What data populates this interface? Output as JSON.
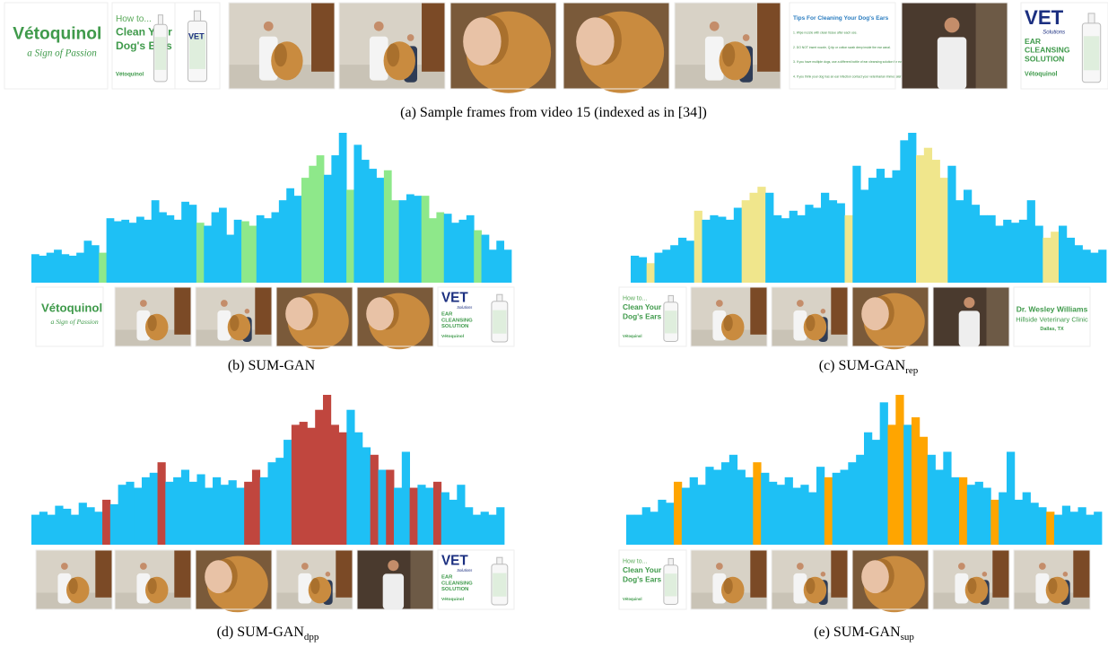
{
  "frame_text": {
    "brand": "Vétoquinol",
    "tagline": "a Sign of Passion",
    "howto": "How to...",
    "title_lines": [
      "Clean Your",
      "Dog's Ears"
    ],
    "vet": "VET",
    "solutions": "Solutions",
    "product_lines": [
      "EAR",
      "CLEANSING",
      "SOLUTION"
    ],
    "tips_title": "Tips For Cleaning Your Dog's Ears",
    "tips": [
      "1. Wipe nozzle with clean tissue after each use.",
      "2. DO NOT insert nozzle, Q-tip or cotton swab deep inside the ear canal.",
      "3. If you have multiple dogs, use a different bottle of ear cleansing solution for each.",
      "4. If you think your dog has an ear infection contact your veterinarian immediately."
    ],
    "doctor": "Dr. Wesley Williams",
    "clinic": "Hillside Veterinary Clinic",
    "city": "Dallas, TX"
  },
  "caption_a": "(a) Sample frames from video 15 (indexed as in [34])",
  "chart_data": [
    {
      "type": "bar",
      "label": "(b)",
      "name": "SUM-GAN",
      "color": "#1ec0f5",
      "highlight_color": "#8ee88a",
      "ylim": [
        0,
        1
      ],
      "values": [
        0.19,
        0.18,
        0.2,
        0.22,
        0.19,
        0.18,
        0.2,
        0.28,
        0.25,
        0.2,
        0.43,
        0.41,
        0.42,
        0.4,
        0.44,
        0.42,
        0.55,
        0.47,
        0.45,
        0.42,
        0.54,
        0.52,
        0.4,
        0.38,
        0.47,
        0.5,
        0.32,
        0.42,
        0.41,
        0.38,
        0.45,
        0.43,
        0.47,
        0.55,
        0.63,
        0.58,
        0.7,
        0.78,
        0.85,
        0.72,
        0.85,
        1.0,
        0.62,
        0.92,
        0.82,
        0.76,
        0.7,
        0.75,
        0.55,
        0.55,
        0.59,
        0.58,
        0.58,
        0.43,
        0.47,
        0.46,
        0.4,
        0.42,
        0.45,
        0.35,
        0.32,
        0.22,
        0.28,
        0.22
      ],
      "highlighted": [
        9,
        22,
        28,
        29,
        36,
        37,
        38,
        42,
        47,
        48,
        52,
        53,
        54,
        59
      ]
    },
    {
      "type": "bar",
      "label": "(c)",
      "name": "SUM-GAN",
      "subscript": "rep",
      "color": "#1ec0f5",
      "highlight_color": "#f0e68c",
      "ylim": [
        0,
        1
      ],
      "values": [
        0.18,
        0.17,
        0.13,
        0.2,
        0.22,
        0.25,
        0.3,
        0.28,
        0.48,
        0.42,
        0.45,
        0.44,
        0.42,
        0.5,
        0.55,
        0.6,
        0.64,
        0.6,
        0.45,
        0.43,
        0.48,
        0.45,
        0.52,
        0.5,
        0.6,
        0.55,
        0.53,
        0.45,
        0.78,
        0.62,
        0.7,
        0.76,
        0.7,
        0.75,
        0.95,
        1.0,
        0.85,
        0.9,
        0.82,
        0.7,
        0.78,
        0.55,
        0.62,
        0.52,
        0.45,
        0.45,
        0.38,
        0.42,
        0.4,
        0.42,
        0.55,
        0.38,
        0.3,
        0.34,
        0.38,
        0.3,
        0.25,
        0.22,
        0.2,
        0.22
      ],
      "highlighted": [
        2,
        8,
        14,
        15,
        16,
        27,
        36,
        37,
        38,
        39,
        52,
        53
      ]
    },
    {
      "type": "bar",
      "label": "(d)",
      "name": "SUM-GAN",
      "subscript": "dpp",
      "color": "#1ec0f5",
      "highlight_color": "#c0463e",
      "ylim": [
        0,
        1
      ],
      "values": [
        0.2,
        0.22,
        0.2,
        0.26,
        0.24,
        0.2,
        0.28,
        0.25,
        0.22,
        0.3,
        0.27,
        0.4,
        0.42,
        0.38,
        0.45,
        0.48,
        0.55,
        0.42,
        0.45,
        0.5,
        0.42,
        0.47,
        0.38,
        0.45,
        0.4,
        0.43,
        0.38,
        0.42,
        0.5,
        0.45,
        0.55,
        0.58,
        0.7,
        0.8,
        0.82,
        0.78,
        0.9,
        1.0,
        0.8,
        0.75,
        0.9,
        0.75,
        0.65,
        0.6,
        0.5,
        0.5,
        0.38,
        0.62,
        0.38,
        0.4,
        0.38,
        0.42,
        0.35,
        0.3,
        0.4,
        0.25,
        0.2,
        0.22,
        0.2,
        0.25
      ],
      "highlighted": [
        9,
        16,
        27,
        28,
        33,
        34,
        35,
        36,
        37,
        38,
        39,
        43,
        45,
        48,
        51
      ]
    },
    {
      "type": "bar",
      "label": "(e)",
      "name": "SUM-GAN",
      "subscript": "sup",
      "color": "#1ec0f5",
      "highlight_color": "#ffa500",
      "ylim": [
        0,
        1
      ],
      "values": [
        0.2,
        0.2,
        0.25,
        0.22,
        0.3,
        0.28,
        0.42,
        0.38,
        0.45,
        0.4,
        0.52,
        0.5,
        0.55,
        0.6,
        0.5,
        0.45,
        0.55,
        0.48,
        0.42,
        0.4,
        0.45,
        0.38,
        0.4,
        0.35,
        0.52,
        0.45,
        0.48,
        0.5,
        0.55,
        0.6,
        0.75,
        0.7,
        0.95,
        0.8,
        1.0,
        0.8,
        0.85,
        0.72,
        0.6,
        0.5,
        0.62,
        0.45,
        0.45,
        0.4,
        0.42,
        0.38,
        0.3,
        0.35,
        0.62,
        0.3,
        0.35,
        0.28,
        0.25,
        0.22,
        0.2,
        0.26,
        0.22,
        0.25,
        0.2,
        0.22
      ],
      "highlighted": [
        6,
        16,
        25,
        33,
        34,
        36,
        37,
        42,
        46,
        53
      ]
    }
  ]
}
